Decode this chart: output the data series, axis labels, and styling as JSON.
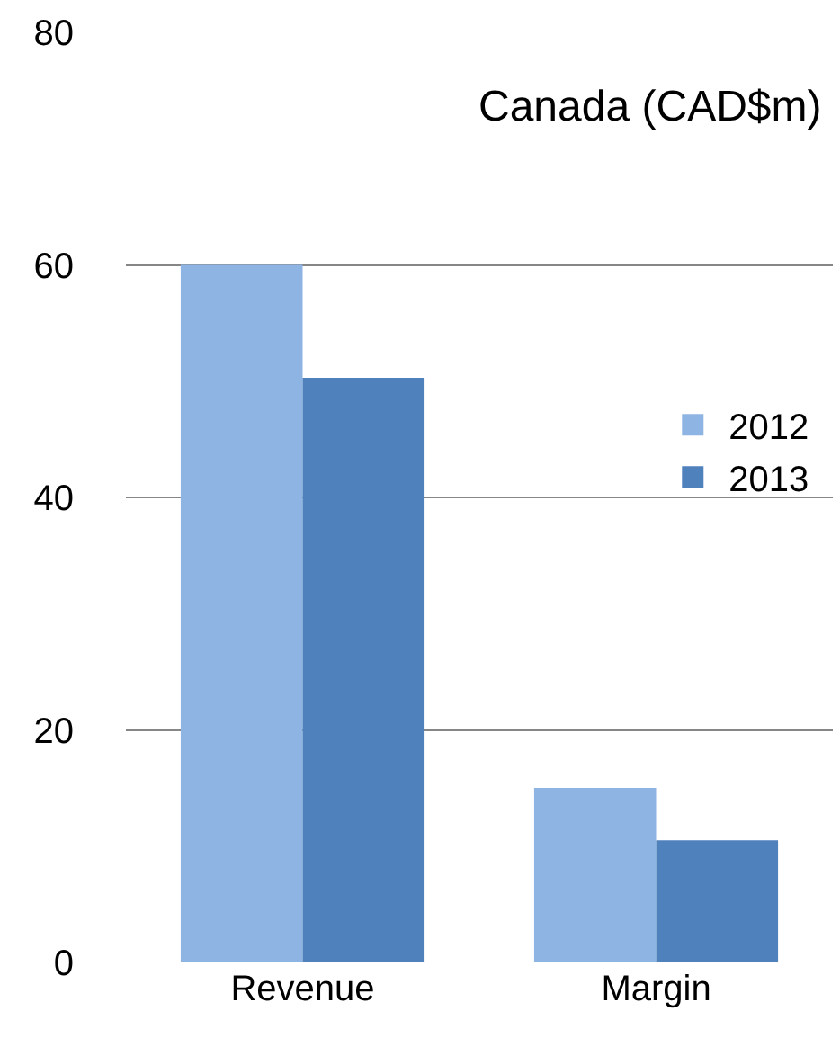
{
  "chart_data": {
    "type": "bar",
    "title": "Canada (CAD$m)",
    "categories": [
      "Revenue",
      "Margin"
    ],
    "series": [
      {
        "name": "2012",
        "color": "#8eb4e3",
        "values": [
          60,
          15
        ]
      },
      {
        "name": "2013",
        "color": "#4f81bd",
        "values": [
          50.3,
          10.5
        ]
      }
    ],
    "ylim": [
      0,
      80
    ],
    "yticks": [
      0,
      20,
      40,
      60,
      80
    ],
    "grid": "y",
    "legend": "right"
  }
}
